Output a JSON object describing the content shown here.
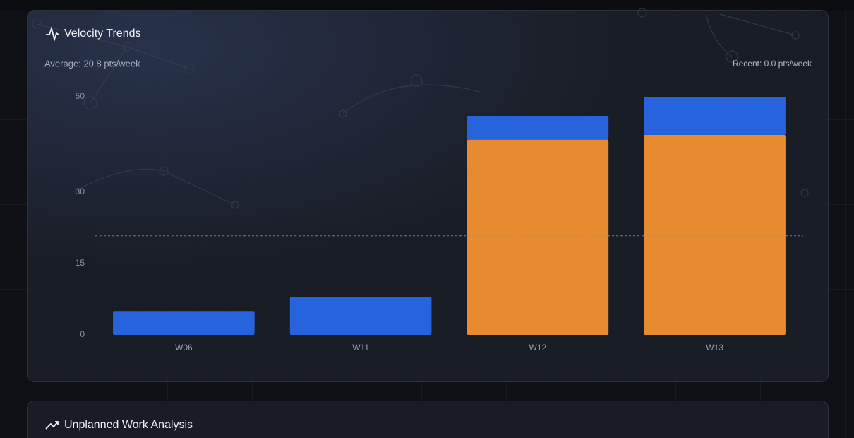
{
  "chart_data": {
    "type": "bar",
    "stacked": true,
    "title": "Velocity Trends",
    "annotations": [
      "Average: 20.8 pts/week",
      "Recent: 0.0 pts/week"
    ],
    "categories": [
      "W06",
      "W11",
      "W12",
      "W13"
    ],
    "series": [
      {
        "color": "#e88b30",
        "values": [
          0,
          0,
          41,
          42
        ]
      },
      {
        "color": "#2663dc",
        "values": [
          5,
          8,
          5,
          8
        ]
      }
    ],
    "ylim": [
      0,
      50
    ],
    "yticks": [
      0,
      15,
      30,
      50
    ],
    "average_line": 20.8,
    "grid": false
  },
  "sections": [
    {
      "title": "Unplanned Work Analysis"
    }
  ]
}
